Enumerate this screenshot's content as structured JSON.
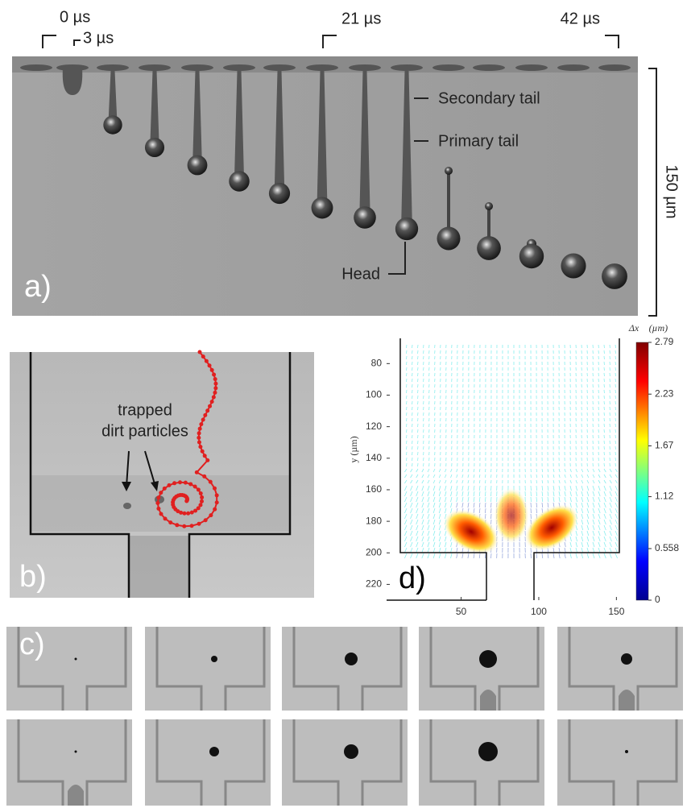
{
  "panel_a": {
    "label": "a)",
    "times": [
      "0 µs",
      "3 µs",
      "21 µs",
      "42 µs"
    ],
    "annotations": {
      "secondary_tail": "Secondary tail",
      "primary_tail": "Primary tail",
      "head": "Head"
    },
    "scale_bar": "150 µm"
  },
  "panel_b": {
    "label": "b)",
    "annotation": [
      "trapped",
      "dirt particles"
    ]
  },
  "panel_c": {
    "label": "c)"
  },
  "panel_d": {
    "label": "d)",
    "y_label": "y (µm)",
    "colorbar_title": "Δx⃗ (µm)",
    "xlim": [
      2,
      155
    ],
    "ylim": [
      64,
      230
    ],
    "xticks": [
      50,
      100,
      150
    ],
    "yticks": [
      80,
      100,
      120,
      140,
      160,
      180,
      200,
      220
    ],
    "colorbar_lim": [
      0,
      2.79
    ],
    "colorbar_ticks": [
      2.79,
      2.23,
      1.67,
      1.12,
      0.558,
      0
    ]
  }
}
